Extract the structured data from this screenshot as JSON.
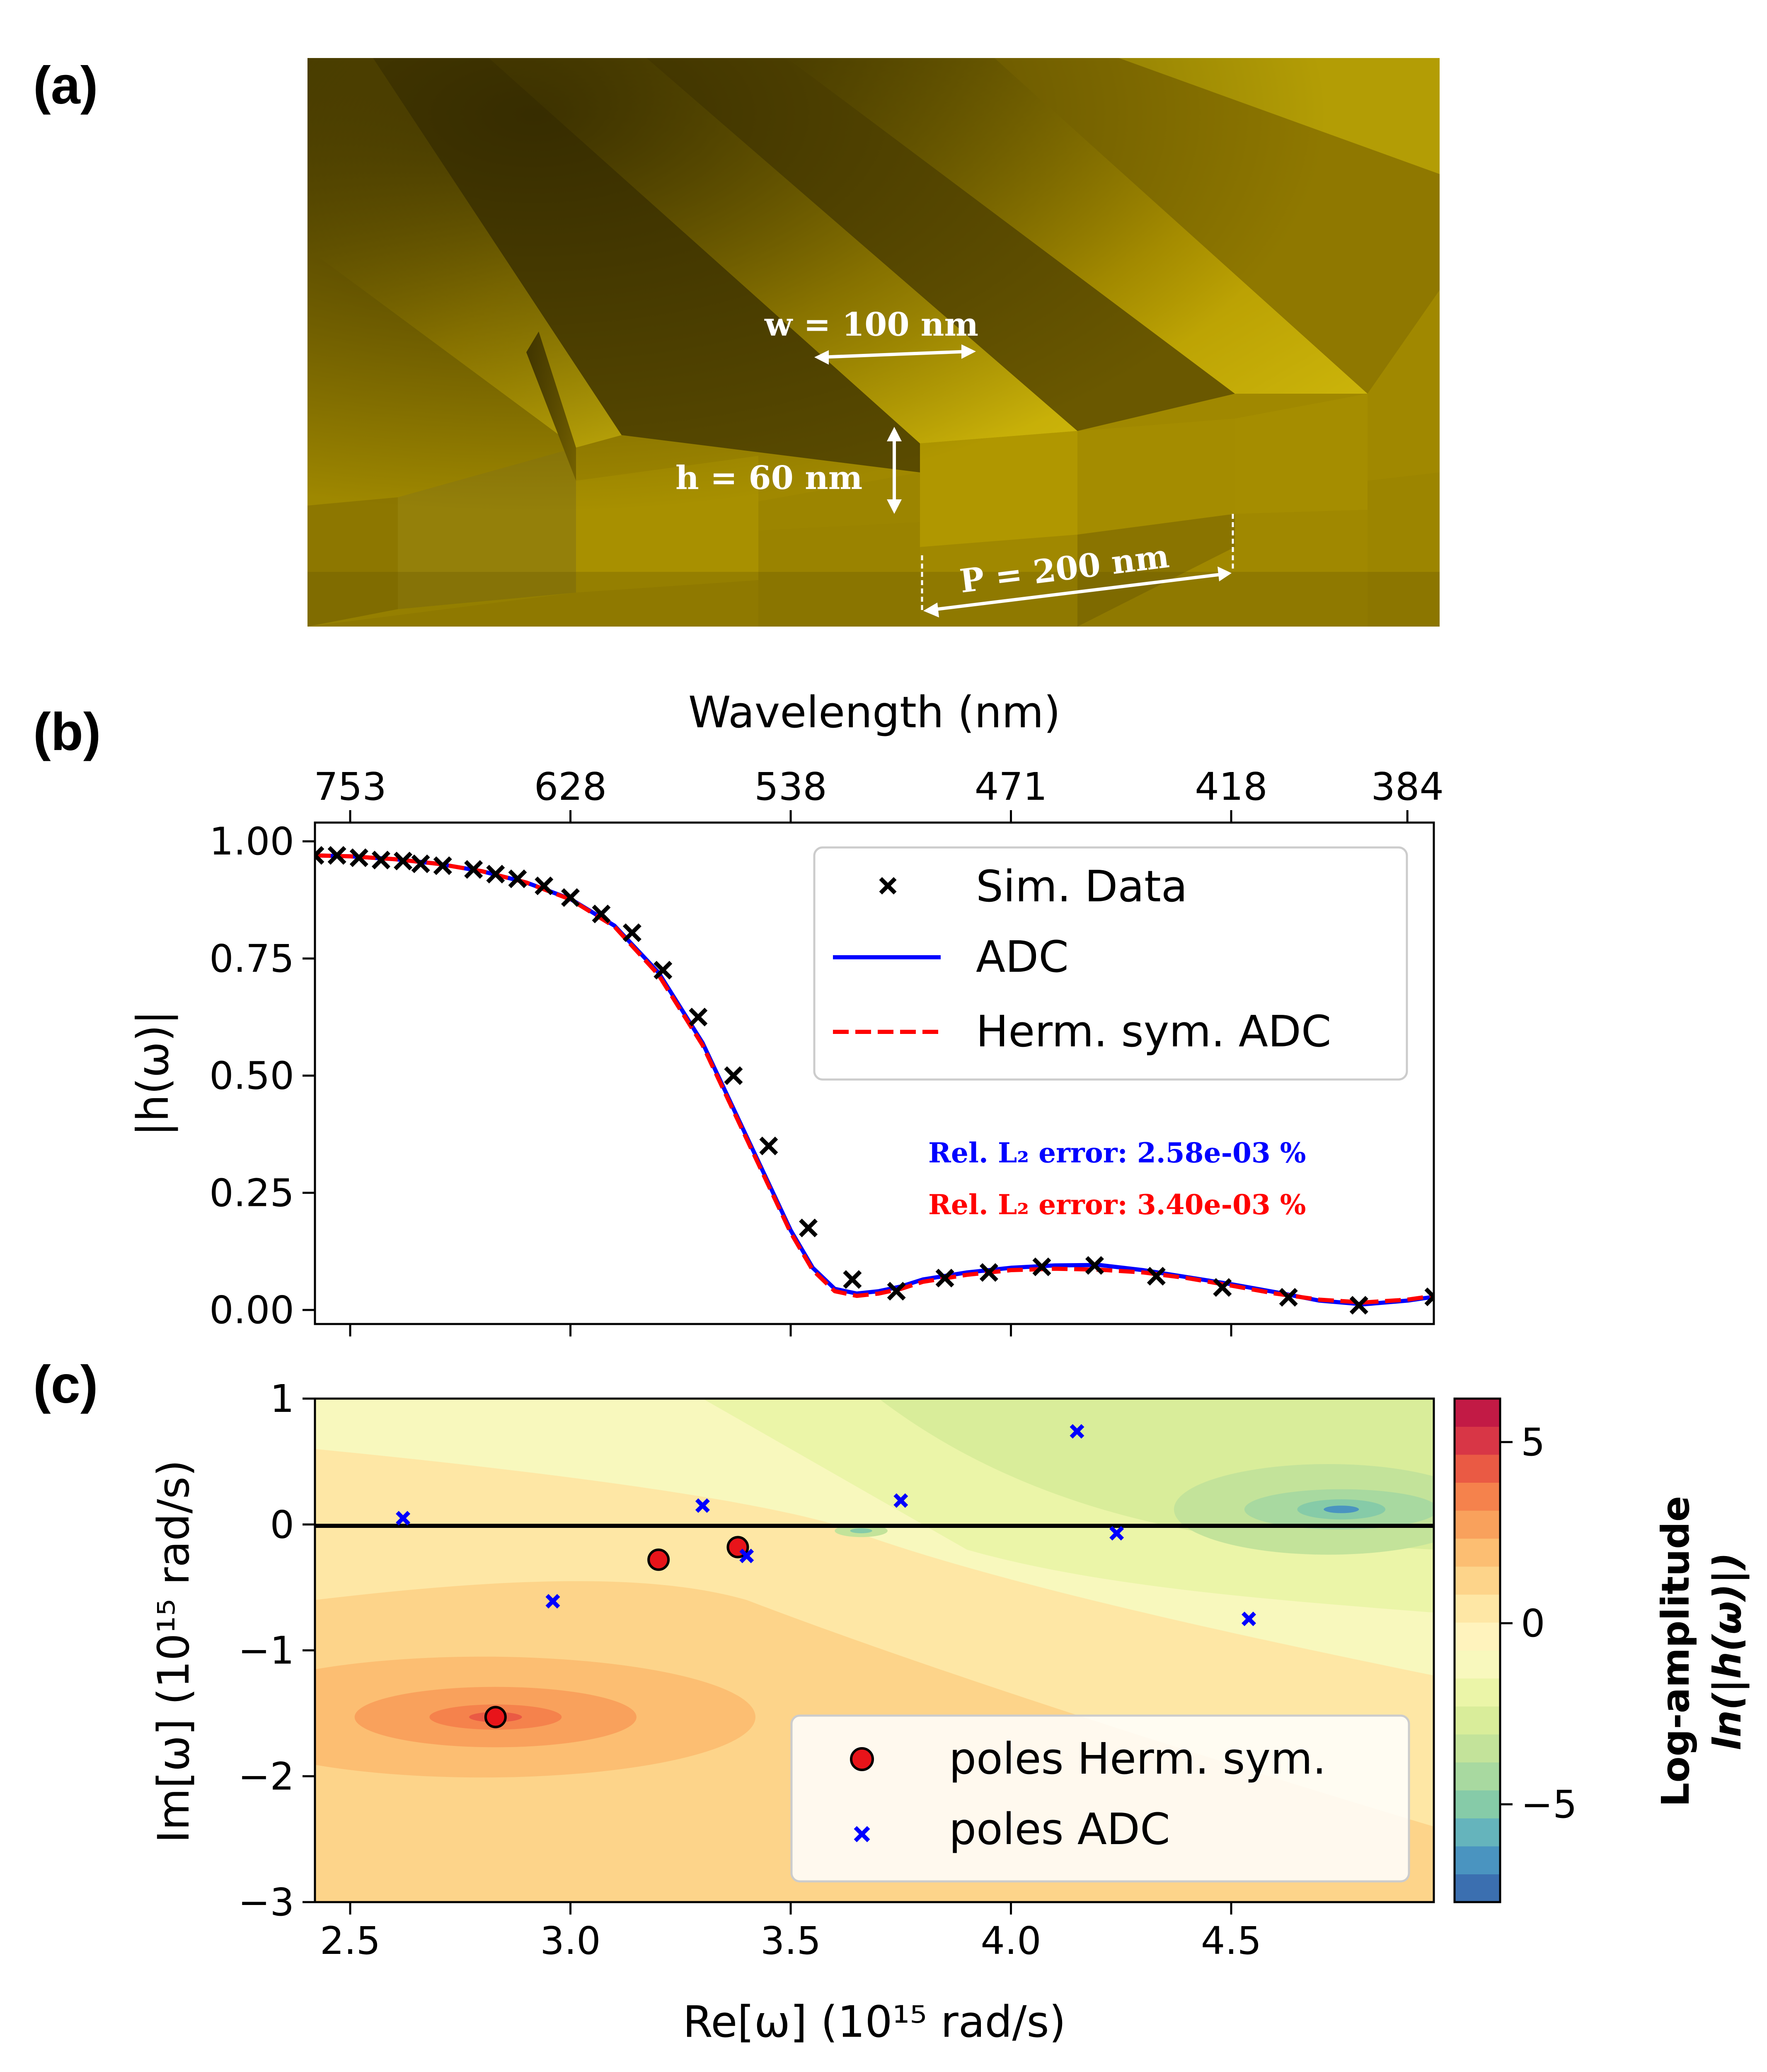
{
  "panel_labels": {
    "a": "(a)",
    "b": "(b)",
    "c": "(c)"
  },
  "image": {
    "w_label": "w = 100 nm",
    "h_label": "h = 60 nm",
    "p_label": "P = 200 nm",
    "colors": {
      "top": "#b89a00",
      "dark": "#4a3d00",
      "mid": "#8a7400",
      "light": "#d6c31a"
    }
  },
  "chart_data": [
    {
      "type": "line",
      "title": "",
      "xlabel": "",
      "ylabel": "|h(ω)|",
      "top_xlabel": "Wavelength (nm)",
      "xlim": [
        2.42,
        4.96
      ],
      "ylim": [
        -0.03,
        1.04
      ],
      "xticks": [
        2.5,
        3.0,
        3.5,
        4.0,
        4.5
      ],
      "yticks": [
        0.0,
        0.25,
        0.5,
        0.75,
        1.0
      ],
      "ytick_labels": [
        "0.00",
        "0.25",
        "0.50",
        "0.75",
        "1.00"
      ],
      "top_ticks": [
        {
          "x": 2.5,
          "label": "753"
        },
        {
          "x": 3.0,
          "label": "628"
        },
        {
          "x": 3.5,
          "label": "538"
        },
        {
          "x": 4.0,
          "label": "471"
        },
        {
          "x": 4.5,
          "label": "418"
        },
        {
          "x": 4.9,
          "label": "384"
        }
      ],
      "series": [
        {
          "name": "Sim. Data",
          "kind": "marker",
          "x": [
            2.42,
            2.47,
            2.52,
            2.57,
            2.62,
            2.66,
            2.71,
            2.78,
            2.83,
            2.88,
            2.94,
            3.0,
            3.07,
            3.14,
            3.21,
            3.29,
            3.37,
            3.45,
            3.54,
            3.64,
            3.74,
            3.85,
            3.95,
            4.07,
            4.19,
            4.33,
            4.48,
            4.63,
            4.79,
            4.96
          ],
          "y": [
            0.97,
            0.97,
            0.965,
            0.96,
            0.958,
            0.952,
            0.948,
            0.94,
            0.93,
            0.92,
            0.905,
            0.88,
            0.845,
            0.805,
            0.725,
            0.625,
            0.5,
            0.35,
            0.175,
            0.065,
            0.04,
            0.068,
            0.08,
            0.092,
            0.095,
            0.072,
            0.048,
            0.027,
            0.01,
            0.028
          ]
        },
        {
          "name": "ADC",
          "kind": "line",
          "color": "#0000ff",
          "x": [
            2.42,
            2.5,
            2.6,
            2.7,
            2.8,
            2.9,
            3.0,
            3.1,
            3.2,
            3.3,
            3.35,
            3.4,
            3.45,
            3.5,
            3.55,
            3.6,
            3.65,
            3.7,
            3.75,
            3.8,
            3.9,
            4.0,
            4.1,
            4.2,
            4.3,
            4.4,
            4.5,
            4.6,
            4.7,
            4.8,
            4.9,
            4.96
          ],
          "y": [
            0.97,
            0.968,
            0.962,
            0.952,
            0.936,
            0.912,
            0.877,
            0.82,
            0.72,
            0.57,
            0.47,
            0.37,
            0.27,
            0.17,
            0.09,
            0.045,
            0.035,
            0.04,
            0.05,
            0.065,
            0.08,
            0.09,
            0.095,
            0.096,
            0.085,
            0.07,
            0.055,
            0.038,
            0.02,
            0.012,
            0.02,
            0.028
          ]
        },
        {
          "name": "Herm. sym. ADC",
          "kind": "dashed",
          "color": "#ff0000",
          "x": [
            2.42,
            2.5,
            2.6,
            2.7,
            2.8,
            2.9,
            3.0,
            3.1,
            3.2,
            3.3,
            3.35,
            3.4,
            3.45,
            3.5,
            3.55,
            3.6,
            3.65,
            3.7,
            3.75,
            3.8,
            3.9,
            4.0,
            4.1,
            4.2,
            4.3,
            4.4,
            4.5,
            4.6,
            4.7,
            4.8,
            4.9,
            4.96
          ],
          "y": [
            0.97,
            0.968,
            0.962,
            0.952,
            0.936,
            0.912,
            0.876,
            0.818,
            0.715,
            0.565,
            0.465,
            0.365,
            0.265,
            0.165,
            0.085,
            0.04,
            0.03,
            0.035,
            0.045,
            0.06,
            0.075,
            0.085,
            0.088,
            0.086,
            0.08,
            0.068,
            0.052,
            0.035,
            0.022,
            0.016,
            0.022,
            0.03
          ]
        }
      ],
      "legend": {
        "position": "upper-right",
        "entries": [
          "Sim. Data",
          "ADC",
          "Herm. sym. ADC"
        ]
      },
      "annotations": [
        {
          "text": "Rel. L₂ error: 2.58e-03 %",
          "color": "#0000ff"
        },
        {
          "text": "Rel. L₂ error: 3.40e-03 %",
          "color": "#ff0000"
        }
      ]
    },
    {
      "type": "heatmap",
      "title": "",
      "xlabel": "Re[ω] (10¹⁵ rad/s)",
      "ylabel": "Im[ω] (10¹⁵ rad/s)",
      "xlim": [
        2.42,
        4.96
      ],
      "ylim": [
        -3,
        1
      ],
      "xticks": [
        2.5,
        3.0,
        3.5,
        4.0,
        4.5
      ],
      "xtick_labels": [
        "2.5",
        "3.0",
        "3.5",
        "4.0",
        "4.5"
      ],
      "yticks": [
        1,
        0,
        -1,
        -2,
        -3
      ],
      "ytick_labels": [
        "1",
        "0",
        "−1",
        "−2",
        "−3"
      ],
      "colorbar": {
        "title_line1": "Log-amplitude",
        "title_line2": "ln(|h(ω)|)",
        "range": [
          -7.7,
          6.2
        ],
        "ticks": [
          5,
          0,
          -5
        ],
        "tick_labels": [
          "5",
          "0",
          "−5"
        ],
        "colors": [
          "#3b6fb0",
          "#4a94c0",
          "#65b4bc",
          "#86cba8",
          "#a8d9a0",
          "#c3e39a",
          "#d9ed9a",
          "#ebf5a8",
          "#f8f8bd",
          "#fff3bd",
          "#fee7a5",
          "#fdd48a",
          "#fcbe72",
          "#f9a15c",
          "#f5824c",
          "#ea5a44",
          "#d83646",
          "#c21a45"
        ]
      },
      "series": [
        {
          "name": "poles Herm. sym.",
          "kind": "circle",
          "color": "#e8141a",
          "points": [
            [
              3.2,
              -0.28
            ],
            [
              3.38,
              -0.18
            ],
            [
              2.83,
              -1.53
            ]
          ]
        },
        {
          "name": "poles ADC",
          "kind": "cross",
          "color": "#0000ff",
          "points": [
            [
              2.62,
              0.05
            ],
            [
              2.96,
              -0.61
            ],
            [
              3.3,
              0.15
            ],
            [
              3.4,
              -0.25
            ],
            [
              3.75,
              0.19
            ],
            [
              4.15,
              0.74
            ],
            [
              4.24,
              -0.07
            ],
            [
              4.54,
              -0.75
            ]
          ]
        }
      ],
      "legend": {
        "position": "lower-right",
        "entries": [
          "poles Herm. sym.",
          "poles ADC"
        ]
      }
    }
  ]
}
